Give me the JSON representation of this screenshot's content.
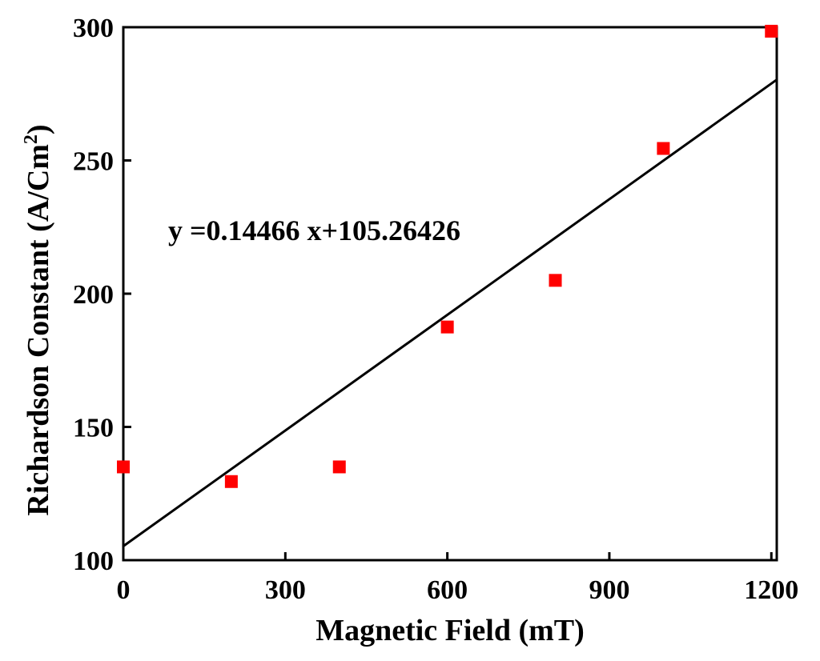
{
  "chart_data": {
    "type": "scatter",
    "xlabel": "Magnetic Field (mT)",
    "ylabel_main": "Richardson Constant (A/Cm",
    "ylabel_sup": "2",
    "ylabel_close": ")",
    "xlim": [
      0,
      1210
    ],
    "ylim": [
      100,
      300
    ],
    "xticks": [
      0,
      300,
      600,
      900,
      1200
    ],
    "yticks": [
      100,
      150,
      200,
      250,
      300
    ],
    "series": [
      {
        "marker": "square",
        "color": "#ff0000",
        "x": [
          0,
          200,
          400,
          600,
          800,
          1000,
          1200
        ],
        "y": [
          135,
          129.5,
          135,
          187.5,
          205,
          254.5,
          298.5
        ]
      }
    ],
    "fit_line": {
      "slope": 0.14466,
      "intercept": 105.26426,
      "x_range": [
        0,
        1210
      ],
      "color": "#000000"
    },
    "annotation": "y =0.14466 x+105.26426",
    "grid": false,
    "legend": "none"
  }
}
